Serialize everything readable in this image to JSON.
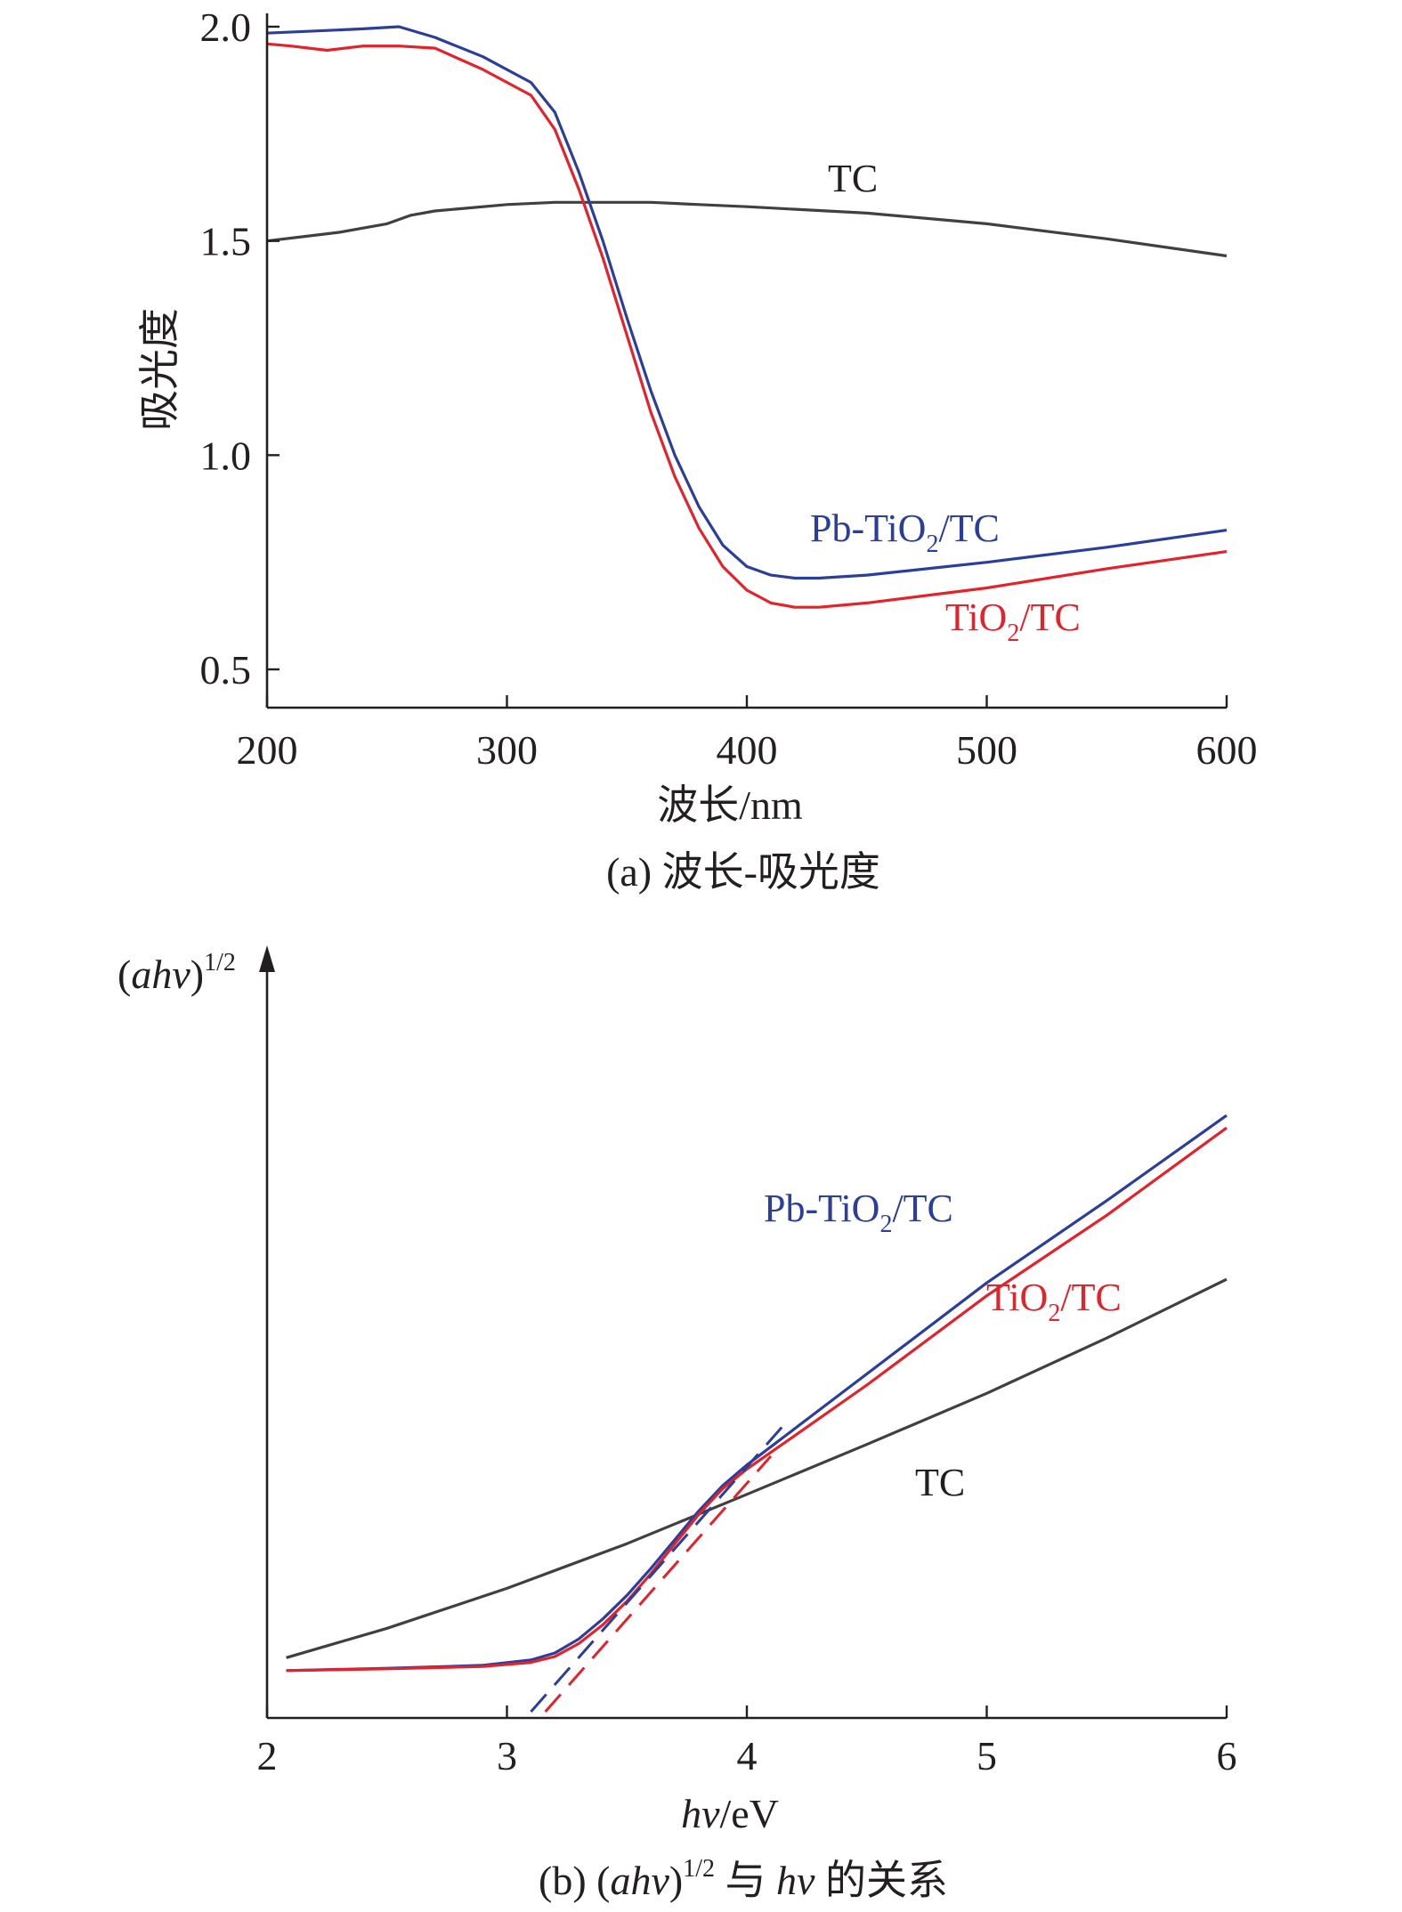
{
  "chart_data": [
    {
      "type": "line",
      "caption": "(a) 波长-吸光度",
      "xlabel": "波长/nm",
      "ylabel": "吸光度",
      "xlim": [
        200,
        600
      ],
      "ylim": [
        0.4,
        2.0
      ],
      "xticks": [
        200,
        300,
        400,
        500,
        600
      ],
      "xtick_labels": [
        "200",
        "300",
        "400",
        "500",
        "600"
      ],
      "yticks": [
        0.5,
        1.0,
        1.5,
        2.0
      ],
      "ytick_labels": [
        "0.5",
        "1.0",
        "1.5",
        "2.0"
      ],
      "grid": false,
      "series": [
        {
          "name": "TC",
          "label_parts": {
            "pre": "TC"
          },
          "color": "#404040",
          "x": [
            200,
            215,
            230,
            250,
            260,
            270,
            280,
            300,
            320,
            340,
            360,
            380,
            400,
            450,
            500,
            550,
            600
          ],
          "y": [
            1.5,
            1.51,
            1.52,
            1.54,
            1.56,
            1.57,
            1.575,
            1.585,
            1.59,
            1.59,
            1.59,
            1.585,
            1.58,
            1.565,
            1.54,
            1.505,
            1.465
          ]
        },
        {
          "name": "Pb-TiO2/TC",
          "label_parts": {
            "pre": "Pb-TiO",
            "sub": "2",
            "post": "/TC"
          },
          "color": "#2b3f9a",
          "x": [
            200,
            220,
            240,
            255,
            270,
            290,
            310,
            320,
            330,
            340,
            350,
            360,
            370,
            380,
            390,
            400,
            410,
            420,
            430,
            450,
            500,
            550,
            600
          ],
          "y": [
            1.985,
            1.99,
            1.995,
            2.0,
            1.975,
            1.93,
            1.87,
            1.8,
            1.66,
            1.5,
            1.32,
            1.15,
            1.0,
            0.88,
            0.79,
            0.74,
            0.72,
            0.713,
            0.713,
            0.72,
            0.75,
            0.785,
            0.825
          ]
        },
        {
          "name": "TiO2/TC",
          "label_parts": {
            "pre": "TiO",
            "sub": "2",
            "post": "/TC"
          },
          "color": "#e3222b",
          "x": [
            200,
            210,
            225,
            240,
            255,
            270,
            290,
            310,
            320,
            330,
            340,
            350,
            360,
            370,
            380,
            390,
            400,
            410,
            420,
            430,
            450,
            500,
            550,
            600
          ],
          "y": [
            1.96,
            1.955,
            1.945,
            1.955,
            1.955,
            1.95,
            1.9,
            1.84,
            1.76,
            1.62,
            1.46,
            1.28,
            1.1,
            0.95,
            0.83,
            0.74,
            0.685,
            0.655,
            0.645,
            0.645,
            0.655,
            0.69,
            0.735,
            0.775
          ]
        }
      ]
    },
    {
      "type": "line",
      "caption_parts": {
        "pre": "(b) (",
        "ital1": "ahv",
        "mid1": ")",
        "sup": "1/2",
        "mid2": " 与 ",
        "ital2": "hv",
        "post": " 的关系"
      },
      "xlabel_parts": {
        "ital": "hv",
        "post": "/eV"
      },
      "ylabel_parts": {
        "pre": "(",
        "ital": "ahv",
        "mid": ")",
        "sup": "1/2"
      },
      "xlim": [
        2,
        6
      ],
      "xticks": [
        2,
        3,
        4,
        5,
        6
      ],
      "xtick_labels": [
        "2",
        "3",
        "4",
        "5",
        "6"
      ],
      "y_ticks_shown": false,
      "grid": false,
      "ylim": [
        0,
        100
      ],
      "series": [
        {
          "name": "TC",
          "label_parts": {
            "pre": "TC"
          },
          "color": "#404040",
          "x": [
            2.08,
            2.5,
            3.0,
            3.5,
            4.0,
            4.5,
            5.0,
            5.5,
            6.0
          ],
          "y": [
            9.2,
            14.2,
            21.0,
            28.6,
            37.0,
            45.5,
            54.2,
            63.6,
            73.6
          ]
        },
        {
          "name": "Pb-TiO2/TC",
          "label_parts": {
            "pre": "Pb-TiO",
            "sub": "2",
            "post": "/TC"
          },
          "color": "#2b3f9a",
          "x": [
            2.08,
            2.5,
            2.9,
            3.1,
            3.2,
            3.3,
            3.4,
            3.5,
            3.6,
            3.7,
            3.8,
            3.9,
            4.0,
            4.2,
            4.5,
            5.0,
            5.5,
            6.0
          ],
          "y": [
            7.0,
            7.4,
            7.9,
            8.8,
            10.0,
            12.4,
            15.8,
            19.8,
            24.4,
            29.3,
            34.2,
            38.5,
            42.0,
            48.2,
            57.5,
            73.0,
            87.0,
            101.5
          ]
        },
        {
          "name": "TiO2/TC",
          "label_parts": {
            "pre": "TiO",
            "sub": "2",
            "post": "/TC"
          },
          "color": "#e3222b",
          "x": [
            2.08,
            2.5,
            2.9,
            3.1,
            3.2,
            3.3,
            3.4,
            3.5,
            3.6,
            3.7,
            3.8,
            3.9,
            4.0,
            4.2,
            4.5,
            5.0,
            5.5,
            6.0
          ],
          "y": [
            7.0,
            7.3,
            7.7,
            8.4,
            9.4,
            11.6,
            14.8,
            18.8,
            23.5,
            28.6,
            33.6,
            38.0,
            41.3,
            47.0,
            55.6,
            70.8,
            84.5,
            99.4
          ]
        }
      ],
      "tangent_lines": [
        {
          "color": "#2b3f9a",
          "x": [
            3.1,
            4.18
          ],
          "y": [
            0.0,
            50.0
          ]
        },
        {
          "color": "#e3222b",
          "x": [
            3.16,
            4.1
          ],
          "y": [
            0.0,
            43.5
          ]
        }
      ]
    }
  ]
}
